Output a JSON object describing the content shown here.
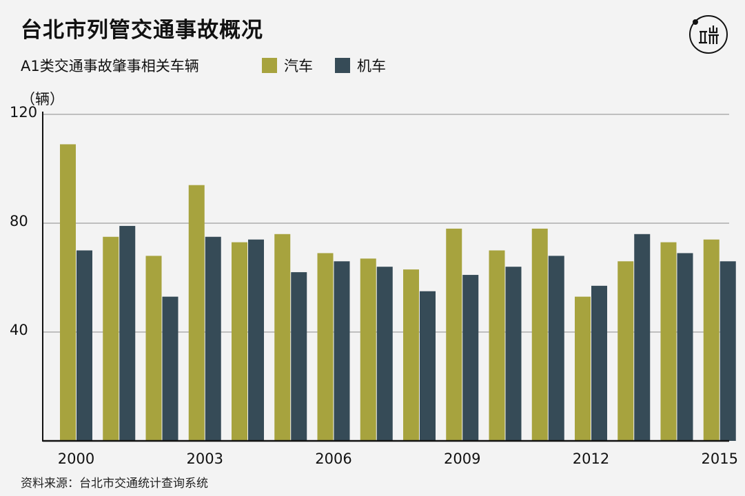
{
  "title": "台北市列管交通事故概况",
  "subtitle": "A1类交通事故肇事相关车辆",
  "unit_label": "（辆）",
  "source": "资料来源：台北市交通统计查询系统",
  "logo": {
    "text": "端",
    "icon": "duan-logo-icon"
  },
  "colors": {
    "car": "#a7a33e",
    "motorcycle": "#364b57",
    "background": "#f3f3f3"
  },
  "chart_data": {
    "type": "bar",
    "categories": [
      "2000",
      "2001",
      "2002",
      "2003",
      "2004",
      "2005",
      "2006",
      "2007",
      "2008",
      "2009",
      "2010",
      "2011",
      "2012",
      "2013",
      "2014",
      "2015"
    ],
    "series": [
      {
        "name": "汽车",
        "values": [
          109,
          75,
          68,
          94,
          73,
          76,
          69,
          67,
          63,
          78,
          70,
          78,
          53,
          66,
          73,
          74
        ]
      },
      {
        "name": "机车",
        "values": [
          70,
          79,
          53,
          75,
          74,
          62,
          66,
          64,
          55,
          61,
          64,
          68,
          57,
          76,
          69,
          66
        ]
      }
    ],
    "x_tick_labels": [
      "2000",
      "2003",
      "2006",
      "2009",
      "2012",
      "2015"
    ],
    "y_ticks": [
      40,
      80,
      120
    ],
    "y_tick_labels": [
      "40",
      "80",
      "120"
    ],
    "ylim": [
      0,
      120
    ],
    "grid": true,
    "legend_position": "top"
  }
}
